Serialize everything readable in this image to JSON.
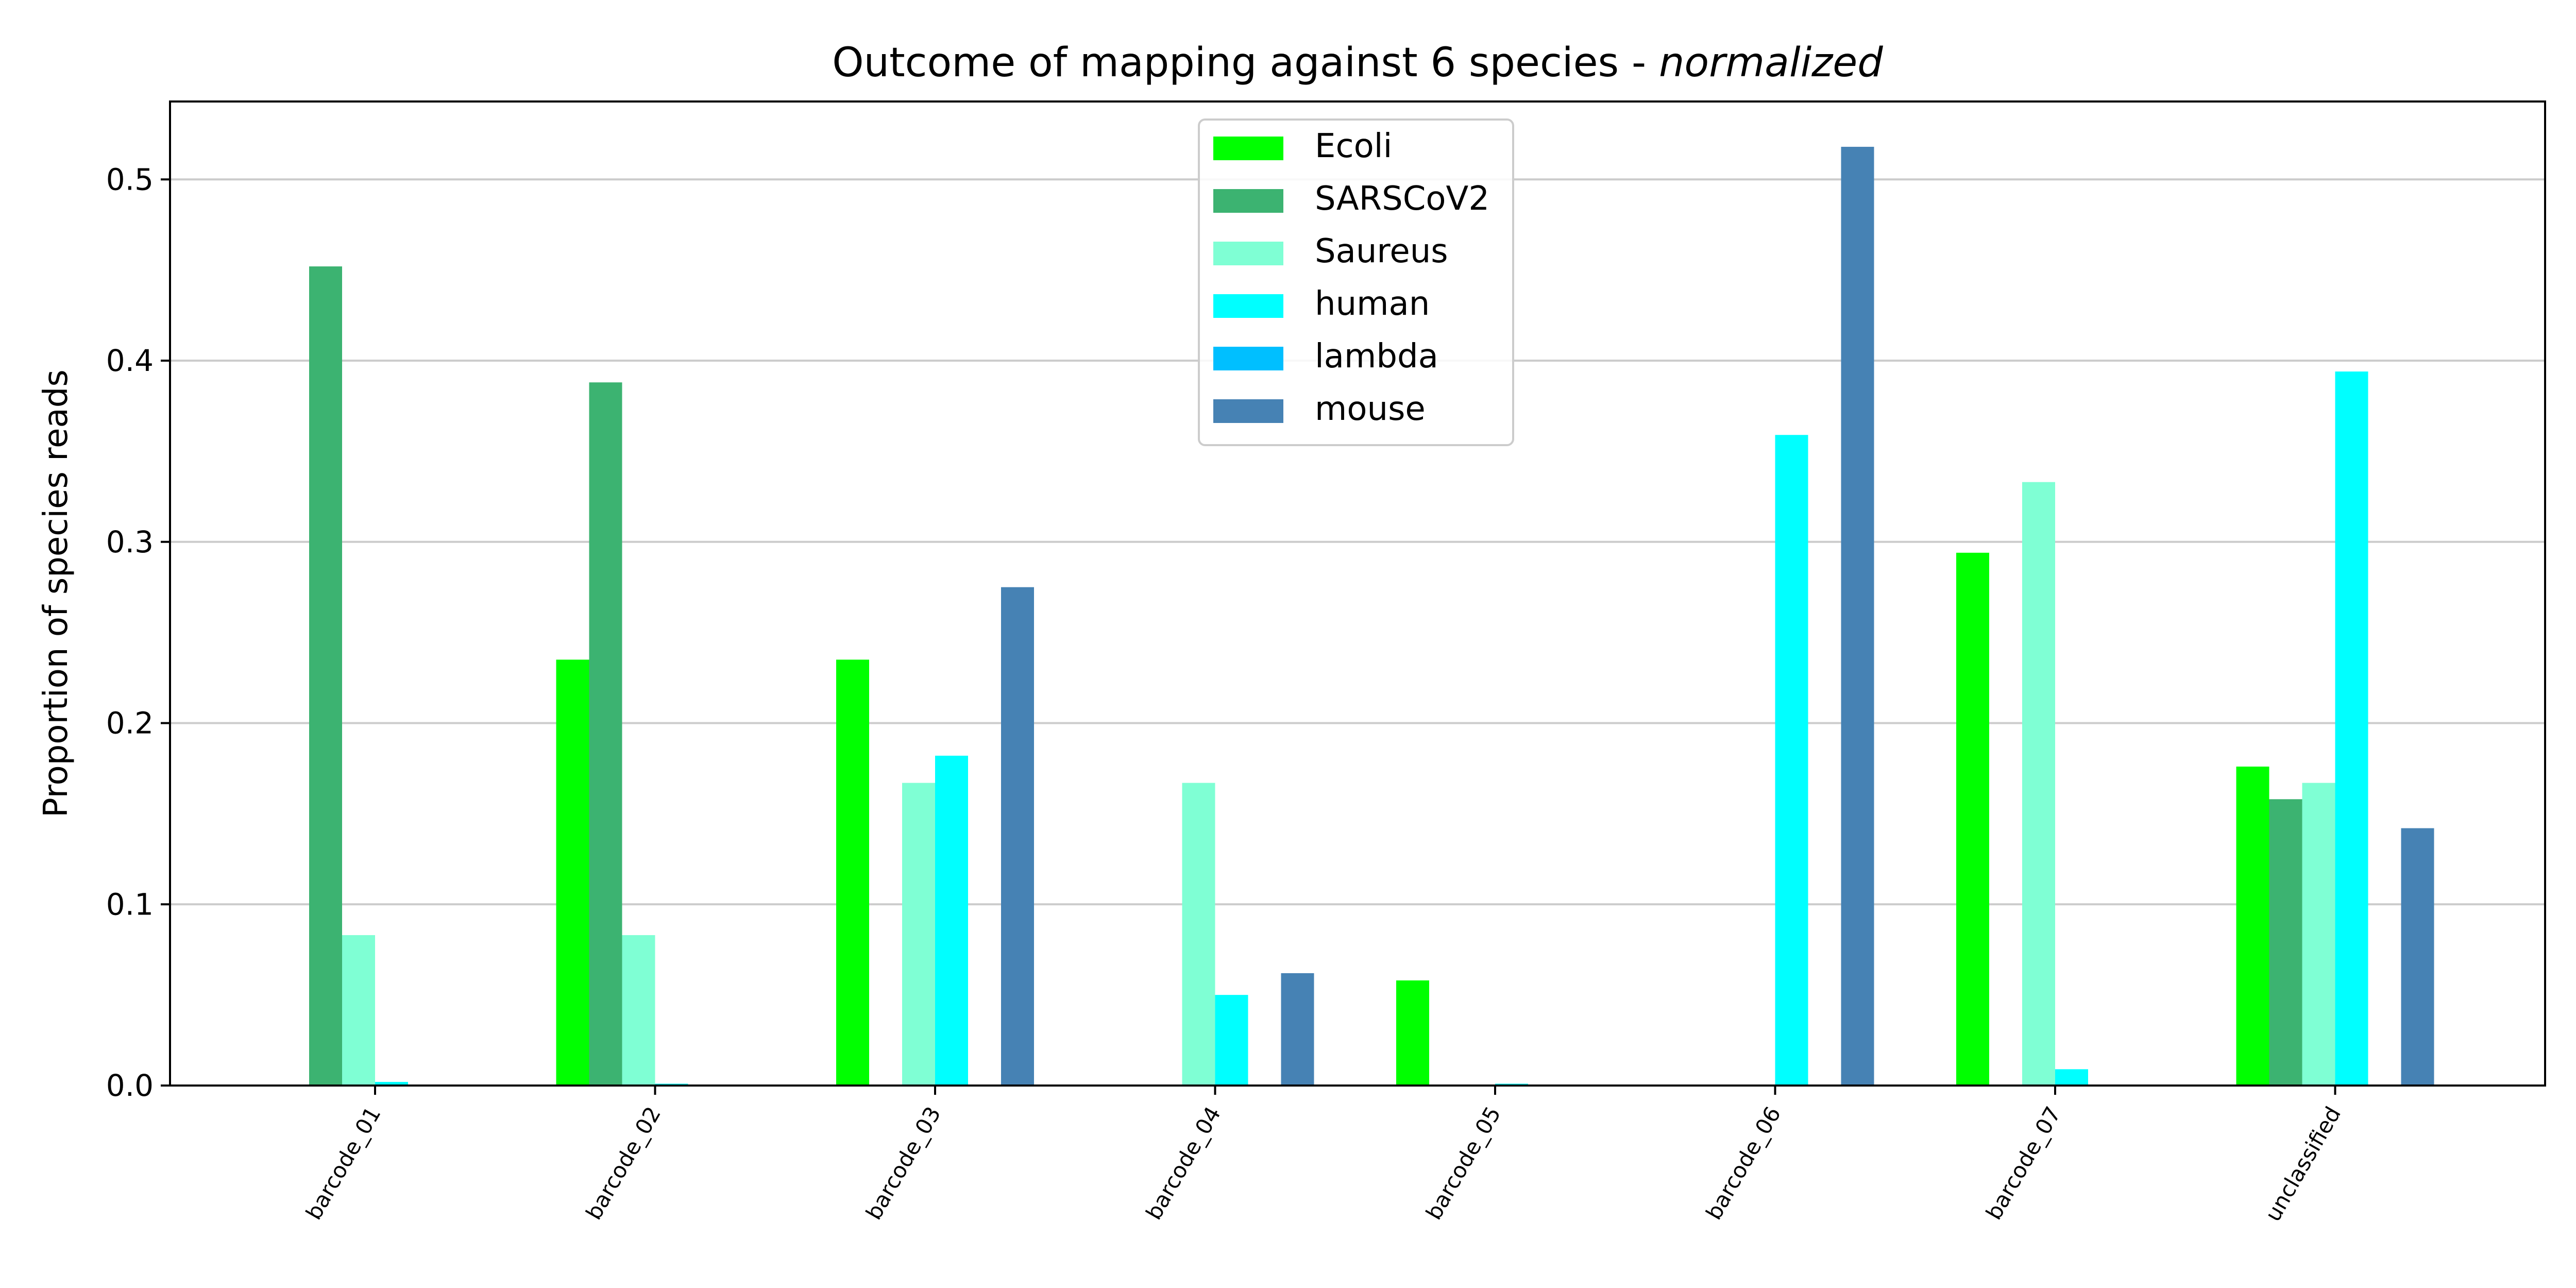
{
  "chart_data": {
    "type": "bar",
    "title": "Outcome of mapping against 6 species - ",
    "title_emphasis": "normalized",
    "xlabel": "",
    "ylabel": "Proportion of species reads",
    "ylim": [
      0,
      0.543
    ],
    "yticks": [
      0.0,
      0.1,
      0.2,
      0.3,
      0.4,
      0.5
    ],
    "ytick_labels": [
      "0.0",
      "0.1",
      "0.2",
      "0.3",
      "0.4",
      "0.5"
    ],
    "grid": "horizontal",
    "legend_position": "top-center",
    "categories": [
      "barcode_01",
      "barcode_02",
      "barcode_03",
      "barcode_04",
      "barcode_05",
      "barcode_06",
      "barcode_07",
      "unclassified"
    ],
    "series": [
      {
        "name": "Ecoli",
        "color": "#00ff00",
        "values": [
          0.0,
          0.235,
          0.235,
          0.0,
          0.058,
          0.0,
          0.294,
          0.176
        ]
      },
      {
        "name": "SARSCoV2",
        "color": "#3cb371",
        "values": [
          0.452,
          0.388,
          0.0,
          0.0,
          0.0,
          0.0,
          0.0,
          0.158
        ]
      },
      {
        "name": "Saureus",
        "color": "#7fffd4",
        "values": [
          0.083,
          0.083,
          0.167,
          0.167,
          0.0,
          0.0,
          0.333,
          0.167
        ]
      },
      {
        "name": "human",
        "color": "#00ffff",
        "values": [
          0.002,
          0.001,
          0.182,
          0.05,
          0.001,
          0.359,
          0.009,
          0.394
        ]
      },
      {
        "name": "lambda",
        "color": "#00bfff",
        "values": [
          0.0,
          0.0,
          0.0,
          0.0,
          0.0,
          0.0,
          0.0,
          0.0
        ]
      },
      {
        "name": "mouse",
        "color": "#4682b4",
        "values": [
          0.0,
          0.0,
          0.275,
          0.062,
          0.0,
          0.518,
          0.0,
          0.142
        ]
      }
    ]
  }
}
